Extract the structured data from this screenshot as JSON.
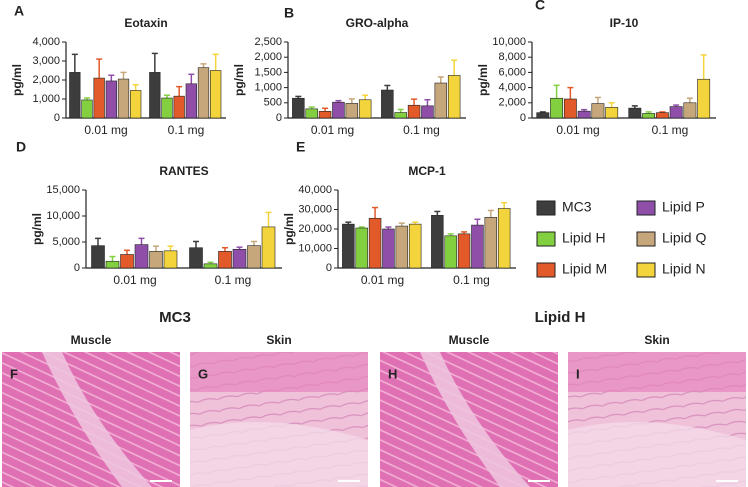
{
  "legend": [
    {
      "name": "MC3",
      "color": "#3d3d3d"
    },
    {
      "name": "Lipid H",
      "color": "#82cf3f"
    },
    {
      "name": "Lipid M",
      "color": "#e2592a"
    },
    {
      "name": "Lipid P",
      "color": "#8f4fa9"
    },
    {
      "name": "Lipid Q",
      "color": "#c6a77c"
    },
    {
      "name": "Lipid N",
      "color": "#f4d43c"
    }
  ],
  "chart_data": [
    {
      "type": "bar",
      "panel": "A",
      "title": "Eotaxin",
      "y_label": "pg/ml",
      "categories": [
        "0.01 mg",
        "0.1 mg"
      ],
      "ylim": [
        0,
        4000
      ],
      "yticks": [
        0,
        {
          "value": 1000,
          "label": "1,000"
        },
        {
          "value": 2000,
          "label": "2,000"
        },
        {
          "value": 3000,
          "label": "3,000"
        },
        {
          "value": 4000,
          "label": "4,000"
        }
      ],
      "series": [
        {
          "values": [
            2400,
            2400
          ],
          "errors": [
            950,
            1000
          ]
        },
        {
          "values": [
            950,
            1050
          ],
          "errors": [
            100,
            150
          ]
        },
        {
          "values": [
            2100,
            1150
          ],
          "errors": [
            1000,
            500
          ]
        },
        {
          "values": [
            1950,
            1800
          ],
          "errors": [
            300,
            500
          ]
        },
        {
          "values": [
            2050,
            2650
          ],
          "errors": [
            350,
            200
          ]
        },
        {
          "values": [
            1450,
            2500
          ],
          "errors": [
            300,
            850
          ]
        }
      ]
    },
    {
      "type": "bar",
      "panel": "B",
      "title": "GRO-alpha",
      "y_label": "pg/ml",
      "categories": [
        "0.01 mg",
        "0.1 mg"
      ],
      "ylim": [
        0,
        2500
      ],
      "yticks": [
        0,
        500,
        {
          "value": 1000,
          "label": "1,000"
        },
        {
          "value": 1500,
          "label": "1,500"
        },
        {
          "value": 2000,
          "label": "2,000"
        },
        {
          "value": 2500,
          "label": "2,500"
        }
      ],
      "series": [
        {
          "values": [
            650,
            920
          ],
          "errors": [
            60,
            150
          ]
        },
        {
          "values": [
            300,
            180
          ],
          "errors": [
            60,
            100
          ]
        },
        {
          "values": [
            220,
            420
          ],
          "errors": [
            100,
            200
          ]
        },
        {
          "values": [
            520,
            400
          ],
          "errors": [
            50,
            200
          ]
        },
        {
          "values": [
            480,
            1150
          ],
          "errors": [
            150,
            200
          ]
        },
        {
          "values": [
            600,
            1400
          ],
          "errors": [
            150,
            500
          ]
        }
      ]
    },
    {
      "type": "bar",
      "panel": "C",
      "title": "IP-10",
      "y_label": "pg/ml",
      "categories": [
        "0.01 mg",
        "0.1 mg"
      ],
      "ylim": [
        0,
        10000
      ],
      "yticks": [
        0,
        {
          "value": 2000,
          "label": "2,000"
        },
        {
          "value": 4000,
          "label": "4,000"
        },
        {
          "value": 6000,
          "label": "6,000"
        },
        {
          "value": 8000,
          "label": "8,000"
        },
        {
          "value": 10000,
          "label": "10,000"
        }
      ],
      "series": [
        {
          "values": [
            700,
            1300
          ],
          "errors": [
            100,
            300
          ]
        },
        {
          "values": [
            2600,
            600
          ],
          "errors": [
            1700,
            200
          ]
        },
        {
          "values": [
            2500,
            700
          ],
          "errors": [
            1500,
            100
          ]
        },
        {
          "values": [
            900,
            1500
          ],
          "errors": [
            200,
            200
          ]
        },
        {
          "values": [
            1900,
            2000
          ],
          "errors": [
            800,
            600
          ]
        },
        {
          "values": [
            1400,
            5100
          ],
          "errors": [
            600,
            3200
          ]
        }
      ]
    },
    {
      "type": "bar",
      "panel": "D",
      "title": "RANTES",
      "y_label": "pg/ml",
      "categories": [
        "0.01 mg",
        "0.1 mg"
      ],
      "ylim": [
        0,
        15000
      ],
      "yticks": [
        0,
        {
          "value": 5000,
          "label": "5,000"
        },
        {
          "value": 10000,
          "label": "10,000"
        },
        {
          "value": 15000,
          "label": "15,000"
        }
      ],
      "series": [
        {
          "values": [
            4300,
            3900
          ],
          "errors": [
            1400,
            1200
          ]
        },
        {
          "values": [
            1300,
            800
          ],
          "errors": [
            900,
            300
          ]
        },
        {
          "values": [
            2600,
            3200
          ],
          "errors": [
            800,
            700
          ]
        },
        {
          "values": [
            4500,
            3600
          ],
          "errors": [
            1200,
            400
          ]
        },
        {
          "values": [
            3200,
            4300
          ],
          "errors": [
            1000,
            800
          ]
        },
        {
          "values": [
            3300,
            7900
          ],
          "errors": [
            900,
            2800
          ]
        }
      ]
    },
    {
      "type": "bar",
      "panel": "E",
      "title": "MCP-1",
      "y_label": "pg/ml",
      "categories": [
        "0.01 mg",
        "0.1 mg"
      ],
      "ylim": [
        0,
        40000
      ],
      "yticks": [
        0,
        {
          "value": 10000,
          "label": "10,000"
        },
        {
          "value": 20000,
          "label": "20,000"
        },
        {
          "value": 30000,
          "label": "30,000"
        },
        {
          "value": 40000,
          "label": "40,000"
        }
      ],
      "series": [
        {
          "values": [
            22500,
            27000
          ],
          "errors": [
            1000,
            2000
          ]
        },
        {
          "values": [
            20500,
            16500
          ],
          "errors": [
            500,
            1000
          ]
        },
        {
          "values": [
            25500,
            17500
          ],
          "errors": [
            5500,
            1000
          ]
        },
        {
          "values": [
            20000,
            22000
          ],
          "errors": [
            1000,
            3000
          ]
        },
        {
          "values": [
            21500,
            26000
          ],
          "errors": [
            1500,
            3500
          ]
        },
        {
          "values": [
            22500,
            30500
          ],
          "errors": [
            1000,
            3000
          ]
        }
      ]
    }
  ],
  "image_groups": [
    {
      "title": "MC3",
      "images": [
        {
          "panel": "F",
          "label": "Muscle"
        },
        {
          "panel": "G",
          "label": "Skin"
        }
      ]
    },
    {
      "title": "Lipid H",
      "images": [
        {
          "panel": "H",
          "label": "Muscle"
        },
        {
          "panel": "I",
          "label": "Skin"
        }
      ]
    }
  ]
}
